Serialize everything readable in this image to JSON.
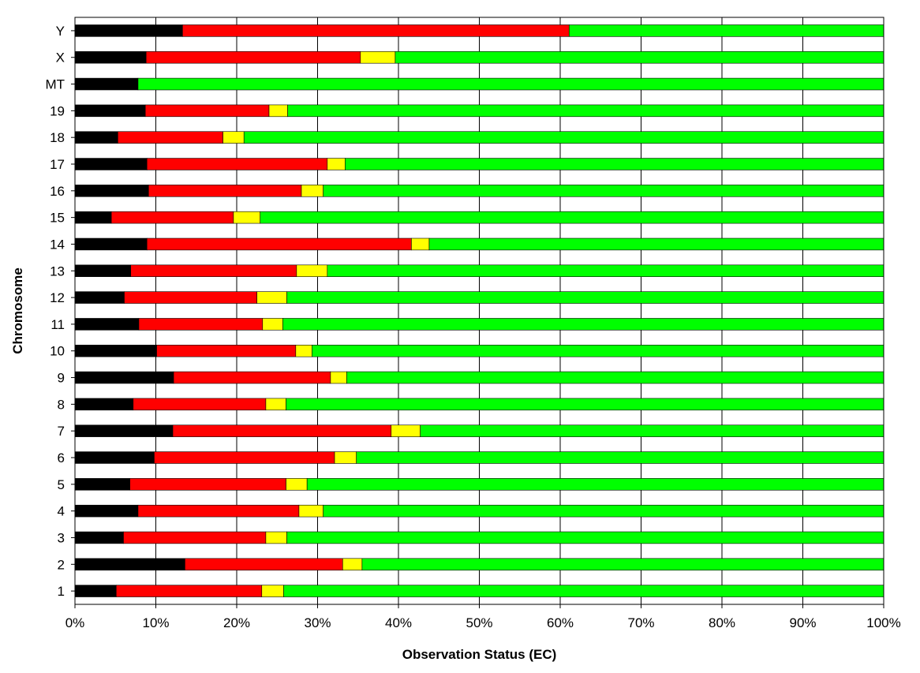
{
  "chart_data": {
    "type": "bar",
    "orientation": "horizontal",
    "stacked": true,
    "title": "",
    "xlabel": "Observation Status (EC)",
    "ylabel": "Chromosome",
    "xlim": [
      0,
      100
    ],
    "x_ticks": [
      "0%",
      "10%",
      "20%",
      "30%",
      "40%",
      "50%",
      "60%",
      "70%",
      "80%",
      "90%",
      "100%"
    ],
    "grid": true,
    "legend": "none",
    "categories": [
      "1",
      "2",
      "3",
      "4",
      "5",
      "6",
      "7",
      "8",
      "9",
      "10",
      "11",
      "12",
      "13",
      "14",
      "15",
      "16",
      "17",
      "18",
      "19",
      "MT",
      "X",
      "Y"
    ],
    "series": [
      {
        "color": "#000000",
        "values": [
          5.1,
          13.6,
          6.0,
          7.8,
          6.8,
          9.8,
          12.1,
          7.2,
          12.2,
          10.1,
          7.9,
          6.1,
          6.9,
          8.9,
          4.5,
          9.1,
          8.9,
          5.3,
          8.7,
          7.8,
          8.8,
          13.3
        ]
      },
      {
        "color": "#ff0000",
        "values": [
          18.0,
          19.5,
          17.6,
          19.9,
          19.3,
          22.3,
          27.0,
          16.4,
          19.4,
          17.2,
          15.3,
          16.4,
          20.5,
          32.7,
          15.1,
          18.9,
          22.3,
          13.0,
          15.3,
          0,
          26.5,
          47.8
        ]
      },
      {
        "color": "#ffff00",
        "values": [
          2.7,
          2.4,
          2.6,
          3.0,
          2.6,
          2.7,
          3.6,
          2.5,
          2.0,
          2.0,
          2.5,
          3.7,
          3.8,
          2.2,
          3.3,
          2.7,
          2.2,
          2.6,
          2.3,
          0,
          4.3,
          0
        ]
      },
      {
        "color": "#00ff00",
        "values": [
          74.2,
          64.5,
          73.8,
          69.3,
          71.3,
          65.2,
          57.3,
          73.9,
          66.4,
          70.7,
          74.3,
          73.8,
          68.8,
          56.2,
          77.1,
          69.3,
          66.6,
          79.1,
          73.7,
          92.2,
          60.4,
          38.9
        ]
      }
    ]
  }
}
